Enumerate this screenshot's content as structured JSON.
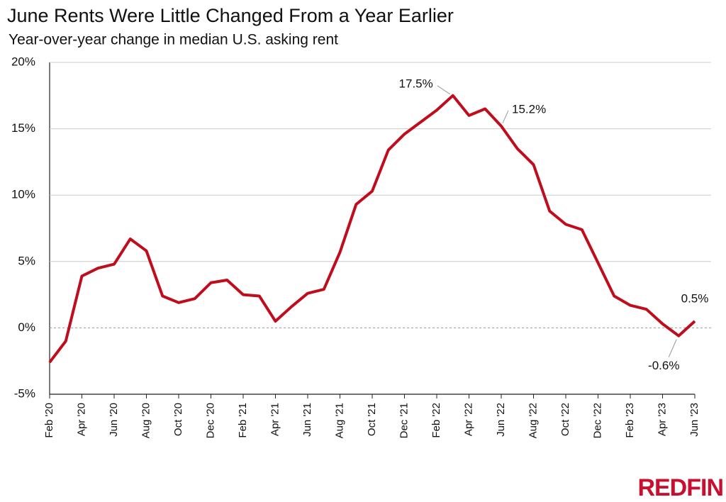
{
  "chart_data": {
    "type": "line",
    "title": "June Rents Were Little Changed From a Year Earlier",
    "subtitle": "Year-over-year change in median U.S. asking rent",
    "logo": "REDFIN",
    "categories": [
      "Feb '20",
      null,
      "Apr '20",
      null,
      "Jun '20",
      null,
      "Aug '20",
      null,
      "Oct '20",
      null,
      "Dec '20",
      null,
      "Feb '21",
      null,
      "Apr '21",
      null,
      "Jun '21",
      null,
      "Aug '21",
      null,
      "Oct '21",
      null,
      "Dec '21",
      null,
      "Feb '22",
      null,
      "Apr '22",
      null,
      "Jun '22",
      null,
      "Aug '22",
      null,
      "Oct '22",
      null,
      "Dec '22",
      null,
      "Feb '23",
      null,
      "Apr '23",
      null,
      "Jun '23"
    ],
    "values": [
      -2.6,
      -1.0,
      3.9,
      4.5,
      4.8,
      6.7,
      5.8,
      2.4,
      1.9,
      2.2,
      3.4,
      3.6,
      2.5,
      2.4,
      0.5,
      1.6,
      2.6,
      2.9,
      5.7,
      9.3,
      10.3,
      13.4,
      14.6,
      15.5,
      16.4,
      17.5,
      16.0,
      16.5,
      15.2,
      13.5,
      12.3,
      8.8,
      7.8,
      7.4,
      4.9,
      2.4,
      1.7,
      1.4,
      0.3,
      -0.6,
      0.5
    ],
    "value_labels": [
      null,
      null,
      null,
      null,
      null,
      null,
      null,
      null,
      null,
      null,
      null,
      null,
      null,
      null,
      null,
      null,
      null,
      null,
      null,
      null,
      null,
      null,
      null,
      null,
      null,
      "17.5%",
      null,
      null,
      "15.2%",
      null,
      null,
      null,
      null,
      null,
      null,
      null,
      null,
      null,
      null,
      "-0.6%",
      "0.5%"
    ],
    "color": "#c00d1e",
    "ylim": [
      -5,
      20
    ],
    "yticks": [
      {
        "value": -5,
        "label": "-5%"
      },
      {
        "value": 0,
        "label": "0%"
      },
      {
        "value": 5,
        "label": "5%"
      },
      {
        "value": 10,
        "label": "10%"
      },
      {
        "value": 15,
        "label": "15%"
      },
      {
        "value": 20,
        "label": "20%"
      }
    ],
    "grid": true
  }
}
